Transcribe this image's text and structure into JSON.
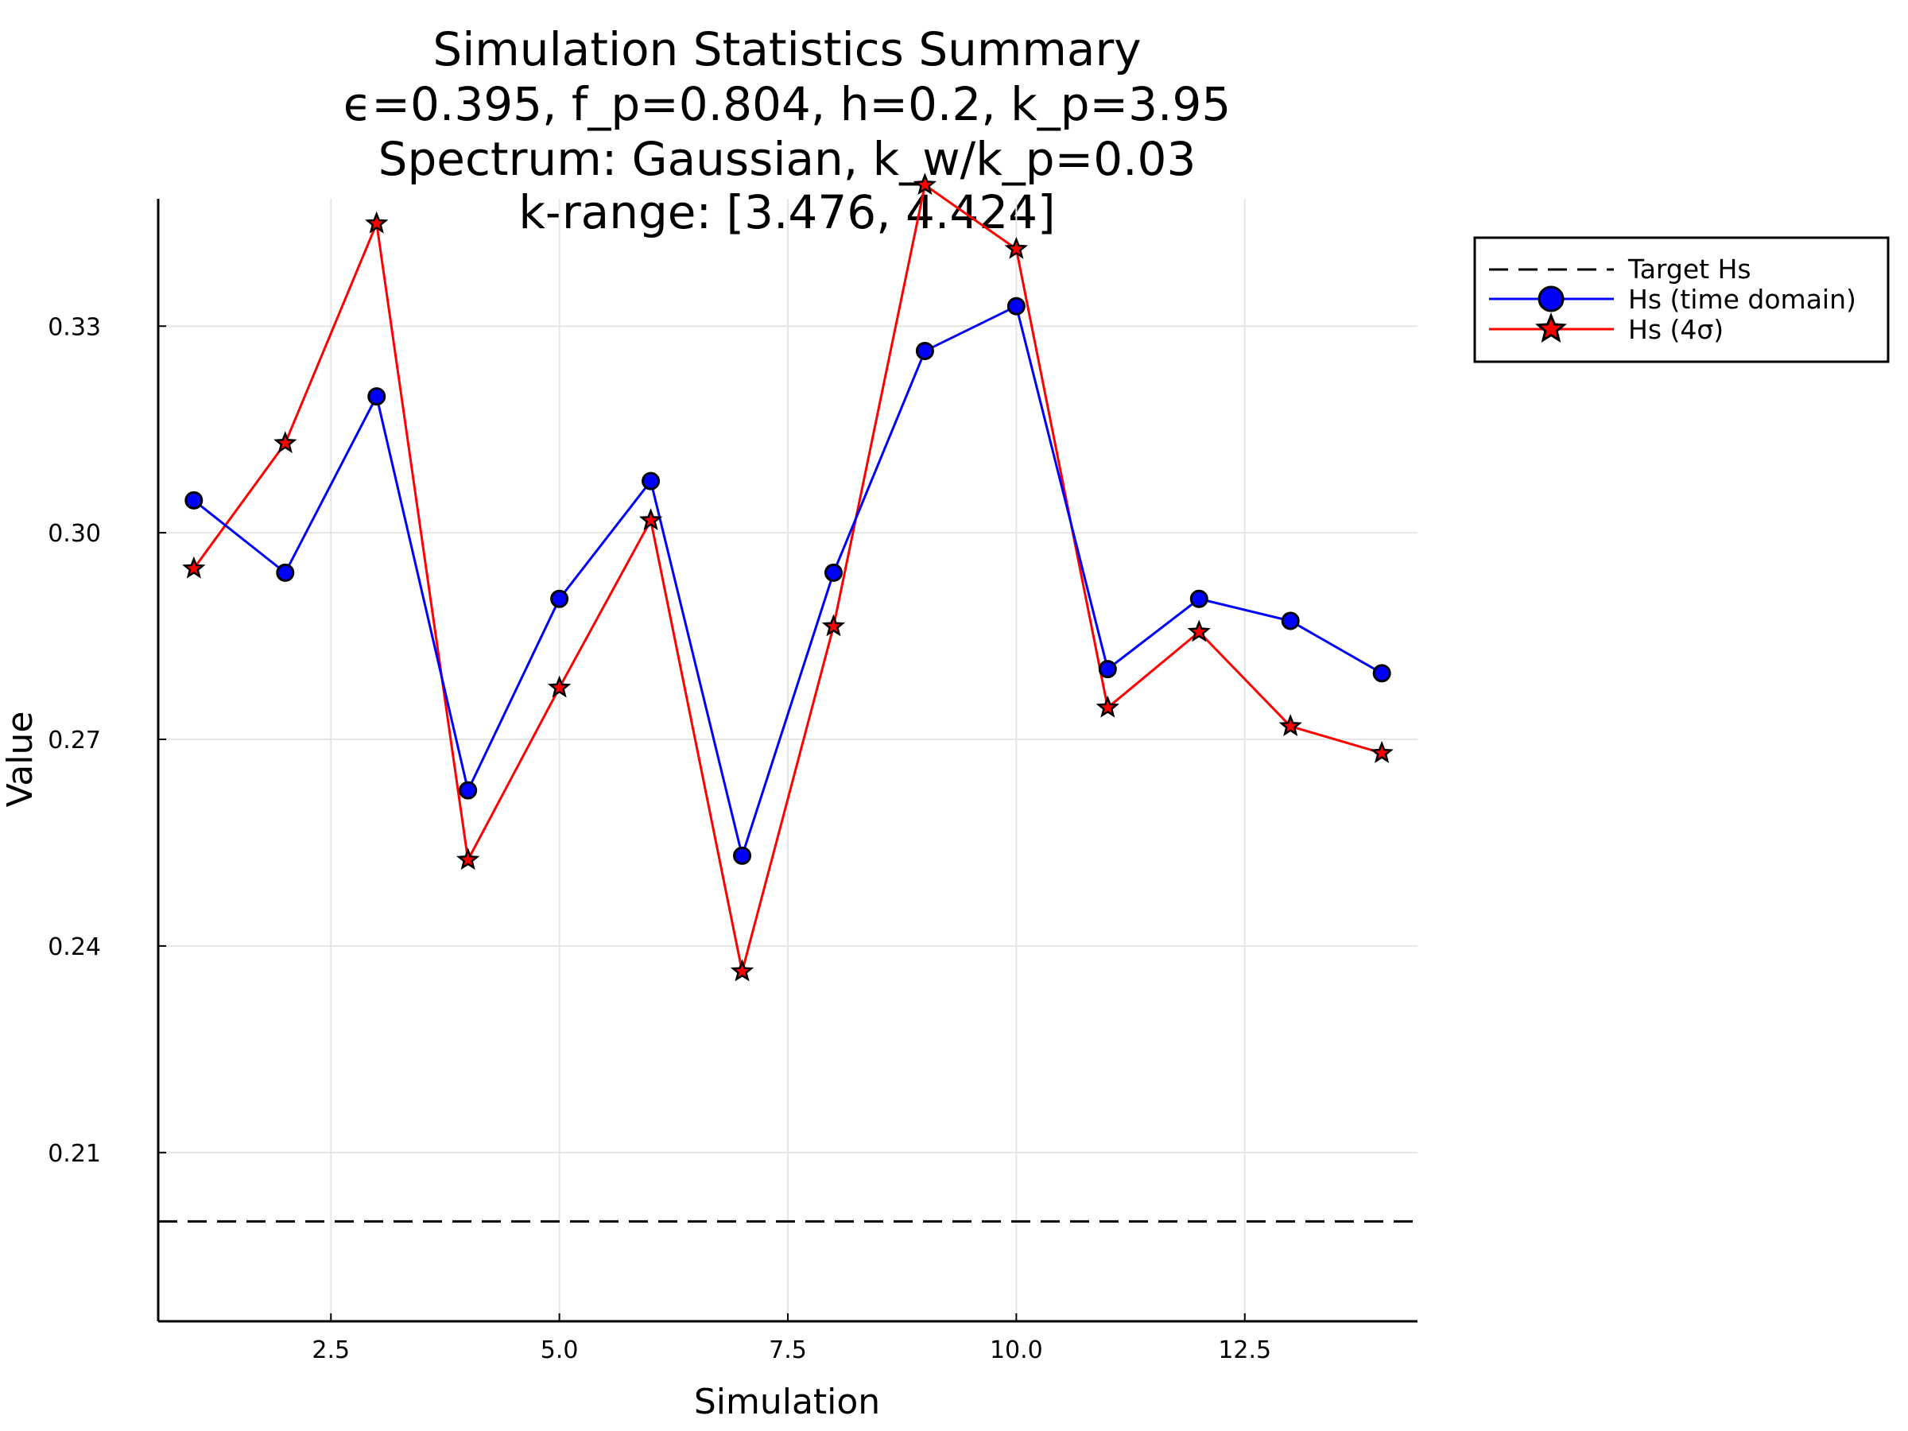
{
  "chart_data": {
    "type": "line",
    "title_lines": [
      "Simulation Statistics Summary",
      "ϵ=0.395, f_p=0.804, h=0.2, k_p=3.95",
      "Spectrum: Gaussian, k_w/k_p=0.03",
      "k-range: [3.476, 4.424]"
    ],
    "xlabel": "Simulation",
    "ylabel": "Value",
    "xlim": [
      0.61,
      14.39
    ],
    "ylim": [
      0.1855,
      0.3485
    ],
    "xticks": [
      2.5,
      5.0,
      7.5,
      10.0,
      12.5
    ],
    "xtick_labels": [
      "2.5",
      "5.0",
      "7.5",
      "10.0",
      "12.5"
    ],
    "yticks": [
      0.21,
      0.24,
      0.27,
      0.3,
      0.33
    ],
    "ytick_labels": [
      "0.21",
      "0.24",
      "0.27",
      "0.30",
      "0.33"
    ],
    "grid": true,
    "legend_position": "outside top-right",
    "x": [
      1,
      2,
      3,
      4,
      5,
      6,
      7,
      8,
      9,
      10,
      11,
      12,
      13,
      14
    ],
    "series": [
      {
        "name": "Target Hs",
        "style": "dashed",
        "color": "#000000",
        "constant": 0.2
      },
      {
        "name": "Hs (time domain)",
        "style": "line+circle",
        "color": "#0000ff",
        "values": [
          0.3047,
          0.2942,
          0.3198,
          0.2626,
          0.2904,
          0.3075,
          0.2531,
          0.2942,
          0.3264,
          0.3329,
          0.2802,
          0.2904,
          0.2872,
          0.2796
        ]
      },
      {
        "name": "Hs (4σ)",
        "style": "line+star",
        "color": "#ff0000",
        "values": [
          0.2948,
          0.313,
          0.3449,
          0.2525,
          0.2775,
          0.3018,
          0.2363,
          0.2864,
          0.3505,
          0.3412,
          0.2746,
          0.2856,
          0.2719,
          0.268
        ]
      }
    ]
  }
}
